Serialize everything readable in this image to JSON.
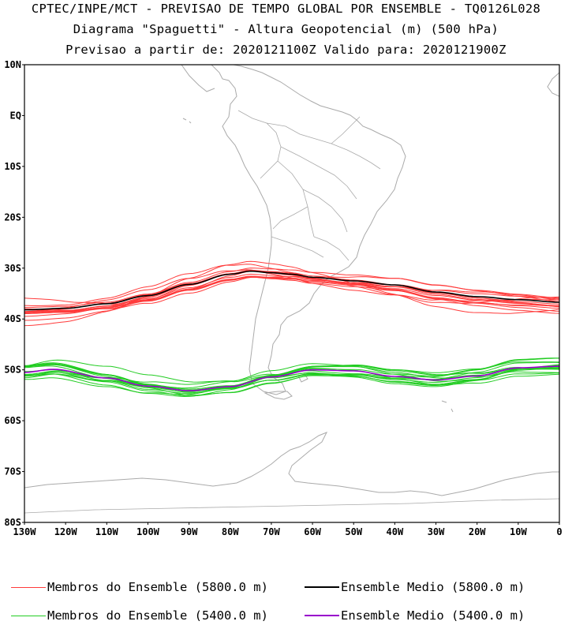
{
  "header": {
    "line1": "CPTEC/INPE/MCT - PREVISAO DE TEMPO GLOBAL POR ENSEMBLE - TQ0126L028",
    "line2": "Diagrama \"Spaguetti\" - Altura Geopotencial (m) (500 hPa)",
    "line3": "Previsao a partir de: 2020121100Z  Valido para: 2020121900Z"
  },
  "axes": {
    "lat_labels": [
      "10N",
      "EQ",
      "10S",
      "20S",
      "30S",
      "40S",
      "50S",
      "60S",
      "70S",
      "80S"
    ],
    "lon_labels": [
      "130W",
      "120W",
      "110W",
      "100W",
      "90W",
      "80W",
      "70W",
      "60W",
      "50W",
      "40W",
      "30W",
      "20W",
      "10W",
      "0"
    ],
    "lon_range": [
      -130,
      0
    ],
    "lat_range": [
      -80,
      10
    ]
  },
  "colors": {
    "member_5800": "#ff3b3b",
    "mean_5800": "#000000",
    "member_5400": "#22cc22",
    "mean_5400": "#9900cc",
    "coast": "#aaaaaa"
  },
  "legend": [
    {
      "label": "Membros do Ensemble (5800.0 m)",
      "color": "#ff3b3b"
    },
    {
      "label": "Ensemble Medio (5800.0 m)",
      "color": "#000000"
    },
    {
      "label": "Membros do Ensemble (5400.0 m)",
      "color": "#22cc22"
    },
    {
      "label": "Ensemble Medio (5400.0 m)",
      "color": "#9900cc"
    }
  ],
  "contours": {
    "mean_5800_lat": [
      [
        -130,
        -38.2
      ],
      [
        -120,
        -37.9
      ],
      [
        -110,
        -37.0
      ],
      [
        -100,
        -35.4
      ],
      [
        -90,
        -33.2
      ],
      [
        -80,
        -31.2
      ],
      [
        -75,
        -30.6
      ],
      [
        -70,
        -30.9
      ],
      [
        -65,
        -31.2
      ],
      [
        -60,
        -31.8
      ],
      [
        -50,
        -32.5
      ],
      [
        -40,
        -33.3
      ],
      [
        -30,
        -34.7
      ],
      [
        -20,
        -35.6
      ],
      [
        -10,
        -36.2
      ],
      [
        0,
        -36.7
      ]
    ],
    "mean_5400_lat": [
      [
        -130,
        -50.5
      ],
      [
        -123,
        -49.9
      ],
      [
        -110,
        -51.6
      ],
      [
        -100,
        -53.2
      ],
      [
        -90,
        -54.1
      ],
      [
        -80,
        -53.3
      ],
      [
        -70,
        -51.4
      ],
      [
        -60,
        -50.0
      ],
      [
        -50,
        -50.2
      ],
      [
        -40,
        -51.3
      ],
      [
        -30,
        -52.0
      ],
      [
        -20,
        -51.2
      ],
      [
        -10,
        -49.6
      ],
      [
        0,
        -49.3
      ]
    ]
  }
}
